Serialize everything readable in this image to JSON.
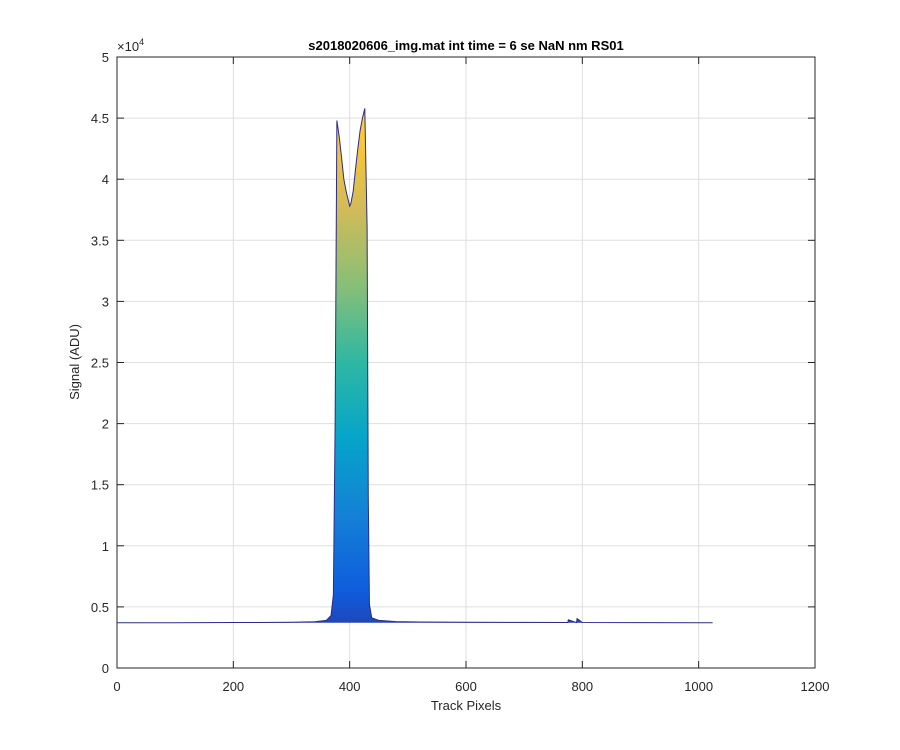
{
  "chart_data": {
    "type": "area",
    "title": "s2018020606_img.mat int time = 6 se  NaN nm RS01",
    "xlabel": "Track Pixels",
    "ylabel": "Signal (ADU)",
    "xlim": [
      0,
      1200
    ],
    "ylim": [
      0,
      50000
    ],
    "xticks": [
      0,
      200,
      400,
      600,
      800,
      1000,
      1200
    ],
    "xtick_labels": [
      "0",
      "200",
      "400",
      "600",
      "800",
      "1000",
      "1200"
    ],
    "yticks": [
      0,
      5000,
      10000,
      15000,
      20000,
      25000,
      30000,
      35000,
      40000,
      45000,
      50000
    ],
    "ytick_labels": [
      "0",
      "0.5",
      "1",
      "1.5",
      "2",
      "2.5",
      "3",
      "3.5",
      "4",
      "4.5",
      "5"
    ],
    "y_exponent_label": "×10",
    "y_exponent_power": "4",
    "grid": true,
    "colormap": [
      "#352a87",
      "#0f5cdd",
      "#1481d6",
      "#06a4ca",
      "#2eb7a4",
      "#87bf77",
      "#d1bb59",
      "#fec832",
      "#f9fb0e"
    ],
    "series": [
      {
        "x": [
          1,
          100,
          200,
          300,
          340,
          360,
          368,
          372,
          375,
          378,
          382,
          386,
          390,
          394,
          398,
          400,
          402,
          406,
          410,
          414,
          418,
          422,
          426,
          430,
          432,
          434,
          438,
          450,
          480,
          520,
          600,
          700,
          775,
          776,
          790,
          791,
          800,
          900,
          1000,
          1024
        ],
        "y": [
          3700,
          3700,
          3720,
          3740,
          3780,
          3900,
          4300,
          6000,
          20000,
          44800,
          43500,
          41800,
          40000,
          39000,
          38200,
          37800,
          38000,
          39000,
          40800,
          42500,
          44000,
          45000,
          45800,
          36000,
          14000,
          5200,
          4100,
          3900,
          3800,
          3760,
          3740,
          3730,
          3720,
          3950,
          3720,
          4050,
          3720,
          3710,
          3700,
          3700
        ]
      }
    ]
  }
}
